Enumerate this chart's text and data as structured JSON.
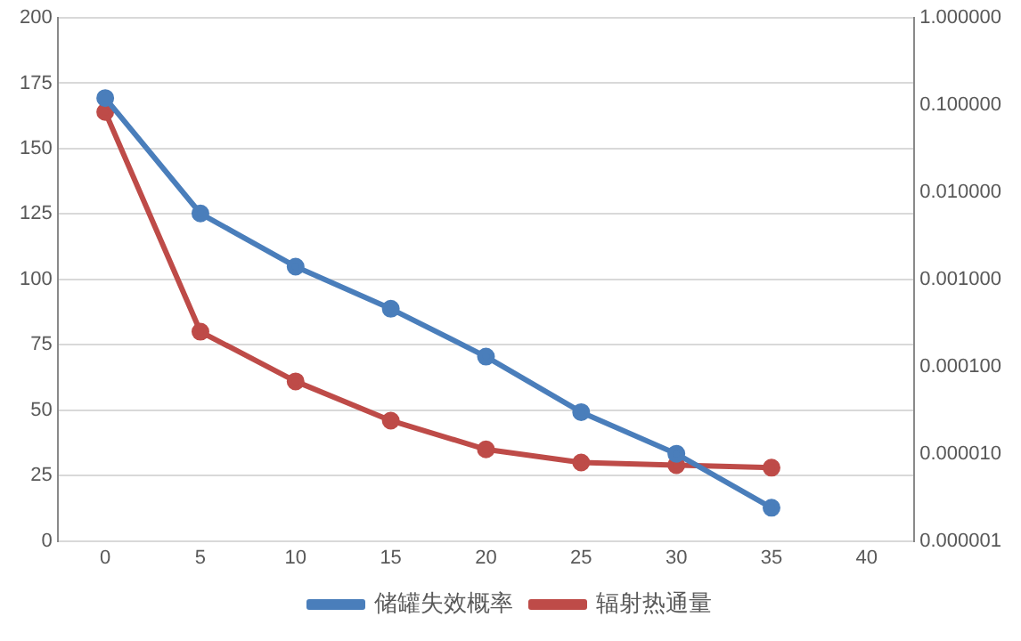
{
  "chart_data": {
    "type": "line",
    "categories": [
      "0",
      "5",
      "10",
      "15",
      "20",
      "25",
      "30",
      "35",
      "40"
    ],
    "series": [
      {
        "name": "储罐失效概率",
        "color": "#4a7ebb",
        "axis": "y2",
        "values": [
          0.12,
          0.0057,
          0.0014,
          0.00046,
          0.00013,
          3e-05,
          1e-05,
          2.4e-06,
          null
        ]
      },
      {
        "name": "辐射热通量",
        "color": "#be4b48",
        "values": [
          164,
          80,
          61,
          46,
          35,
          30,
          29,
          28,
          null
        ]
      }
    ],
    "ylim": [
      0,
      200
    ],
    "yticks": [
      0,
      25,
      50,
      75,
      100,
      125,
      150,
      175,
      200
    ],
    "y2lim": [
      1e-06,
      1
    ],
    "y2ticks": [
      {
        "value": 1e-06,
        "label": "0.000001"
      },
      {
        "value": 1e-05,
        "label": "0.000010"
      },
      {
        "value": 0.0001,
        "label": "0.000100"
      },
      {
        "value": 0.001,
        "label": "0.001000"
      },
      {
        "value": 0.01,
        "label": "0.010000"
      },
      {
        "value": 0.1,
        "label": "0.100000"
      },
      {
        "value": 1,
        "label": "1.000000"
      }
    ],
    "log": "y2",
    "grid": "y",
    "legend": "bottom",
    "marker": "circle",
    "line_style": "solid"
  }
}
